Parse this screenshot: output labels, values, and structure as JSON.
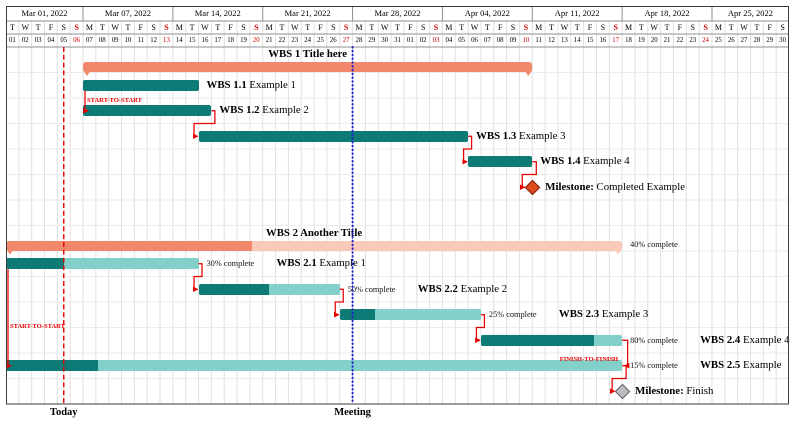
{
  "chart_data": {
    "type": "gantt",
    "calendar": {
      "weeks": [
        {
          "label": "Mar 01, 2022",
          "days": 6
        },
        {
          "label": "Mar 07, 2022",
          "days": 7
        },
        {
          "label": "Mar 14, 2022",
          "days": 7
        },
        {
          "label": "Mar 21, 2022",
          "days": 7
        },
        {
          "label": "Mar 28, 2022",
          "days": 7
        },
        {
          "label": "Apr 04, 2022",
          "days": 7
        },
        {
          "label": "Apr 11, 2022",
          "days": 7
        },
        {
          "label": "Apr 18, 2022",
          "days": 7
        },
        {
          "label": "Apr 25, 2022",
          "days": 6
        }
      ],
      "day_letters": [
        "T",
        "W",
        "T",
        "F",
        "S",
        "S",
        "M",
        "T",
        "W",
        "T",
        "F",
        "S",
        "S",
        "M",
        "T",
        "W",
        "T",
        "F",
        "S",
        "S",
        "M",
        "T",
        "W",
        "T",
        "F",
        "S",
        "S",
        "M",
        "T",
        "W",
        "T",
        "F",
        "S",
        "S",
        "M",
        "T",
        "W",
        "T",
        "F",
        "S",
        "S",
        "M",
        "T",
        "W",
        "T",
        "F",
        "S",
        "S",
        "M",
        "T",
        "W",
        "T",
        "F",
        "S",
        "S",
        "M",
        "T",
        "W",
        "T",
        "F",
        "S"
      ],
      "day_numbers": [
        "01",
        "02",
        "03",
        "04",
        "05",
        "06",
        "07",
        "08",
        "09",
        "10",
        "11",
        "12",
        "13",
        "14",
        "15",
        "16",
        "17",
        "18",
        "19",
        "20",
        "21",
        "22",
        "23",
        "24",
        "25",
        "26",
        "27",
        "28",
        "29",
        "30",
        "31",
        "01",
        "02",
        "03",
        "04",
        "05",
        "06",
        "07",
        "08",
        "09",
        "10",
        "11",
        "12",
        "13",
        "14",
        "15",
        "16",
        "17",
        "18",
        "19",
        "20",
        "21",
        "22",
        "23",
        "24",
        "25",
        "26",
        "27",
        "28",
        "29",
        "30"
      ],
      "sunday_indices": [
        5,
        12,
        19,
        26,
        33,
        40,
        47,
        54
      ]
    },
    "rows": [
      {
        "row": 0,
        "kind": "group",
        "bold": "WBS 1",
        "text": "Title here",
        "start": 6,
        "end": 41
      },
      {
        "row": 1,
        "kind": "task",
        "bold": "WBS 1.1",
        "text": "Example 1",
        "start": 6,
        "end": 15
      },
      {
        "row": 2,
        "kind": "task",
        "bold": "WBS 1.2",
        "text": "Example 2",
        "start": 6,
        "end": 16
      },
      {
        "row": 3,
        "kind": "task",
        "bold": "WBS 1.3",
        "text": "Example 3",
        "start": 15,
        "end": 36
      },
      {
        "row": 4,
        "kind": "task",
        "bold": "WBS 1.4",
        "text": "Example 4",
        "start": 36,
        "end": 41
      },
      {
        "row": 5,
        "kind": "milestone",
        "bold": "Milestone:",
        "text": "Completed Example",
        "at": 41,
        "style": "done"
      },
      {
        "row": 7,
        "kind": "group",
        "bold": "WBS 2",
        "text": "Another Title",
        "start": 0,
        "end": 48,
        "progress": 40,
        "progress_label": "40% complete"
      },
      {
        "row": 8,
        "kind": "task",
        "bold": "WBS 2.1",
        "text": "Example 1",
        "start": 0,
        "end": 15,
        "progress": 30,
        "progress_label": "30% complete"
      },
      {
        "row": 9,
        "kind": "task",
        "bold": "WBS 2.2",
        "text": "Example 2",
        "start": 15,
        "end": 26,
        "progress": 50,
        "progress_label": "50% complete"
      },
      {
        "row": 10,
        "kind": "task",
        "bold": "WBS 2.3",
        "text": "Example 3",
        "start": 26,
        "end": 37,
        "progress": 25,
        "progress_label": "25% complete"
      },
      {
        "row": 11,
        "kind": "task",
        "bold": "WBS 2.4",
        "text": "Example 4",
        "start": 37,
        "end": 48,
        "progress": 80,
        "progress_label": "80% complete"
      },
      {
        "row": 12,
        "kind": "task",
        "bold": "WBS 2.5",
        "text": "Example",
        "start": 0,
        "end": 48,
        "progress": 15,
        "progress_label": "15% complete"
      },
      {
        "row": 13,
        "kind": "milestone",
        "bold": "Milestone:",
        "text": "Finish",
        "at": 48,
        "style": "finish"
      }
    ],
    "links": [
      {
        "type": "start-to-start",
        "label": "START-TO-START",
        "from_row": 1,
        "to_row": 2
      },
      {
        "type": "finish-to-start",
        "from_row": 2,
        "to_row": 3
      },
      {
        "type": "finish-to-start",
        "from_row": 3,
        "to_row": 4
      },
      {
        "type": "finish-to-milestone",
        "from_row": 4,
        "to_row": 5
      },
      {
        "type": "start-to-start",
        "label": "START-TO-START",
        "from_row": 8,
        "to_row": 12
      },
      {
        "type": "finish-to-start",
        "from_row": 8,
        "to_row": 9
      },
      {
        "type": "finish-to-start",
        "from_row": 9,
        "to_row": 10
      },
      {
        "type": "finish-to-start",
        "from_row": 10,
        "to_row": 11
      },
      {
        "type": "finish-to-finish",
        "label": "FINISH-TO-FINISH",
        "from_row": 11,
        "to_row": 12
      },
      {
        "type": "finish-to-milestone",
        "from_row": 12,
        "to_row": 13
      }
    ],
    "markers": [
      {
        "label": "Today",
        "day": 4.5,
        "style": "today"
      },
      {
        "label": "Meeting",
        "day": 27,
        "style": "meeting"
      }
    ],
    "palette": {
      "task": "#0e7a76",
      "task_incomplete": "#83cfc9",
      "group": "#f1886b",
      "group_incomplete": "#f9c9ba",
      "link": "#e50000",
      "today_line": "#e50000",
      "meeting_line": "#2222cc",
      "milestone_done": "#dd4a1f",
      "milestone_done_border": "#7a2008",
      "milestone_finish": "#bdbdc1",
      "milestone_finish_border": "#5f5f66",
      "sunday": "#cc0000",
      "frame": "#3c3c3c",
      "grid_light": "#e0e0e0",
      "grid_row": "#ebebeb",
      "separator": "#8f8f8f",
      "progress_text": "#111111"
    }
  }
}
